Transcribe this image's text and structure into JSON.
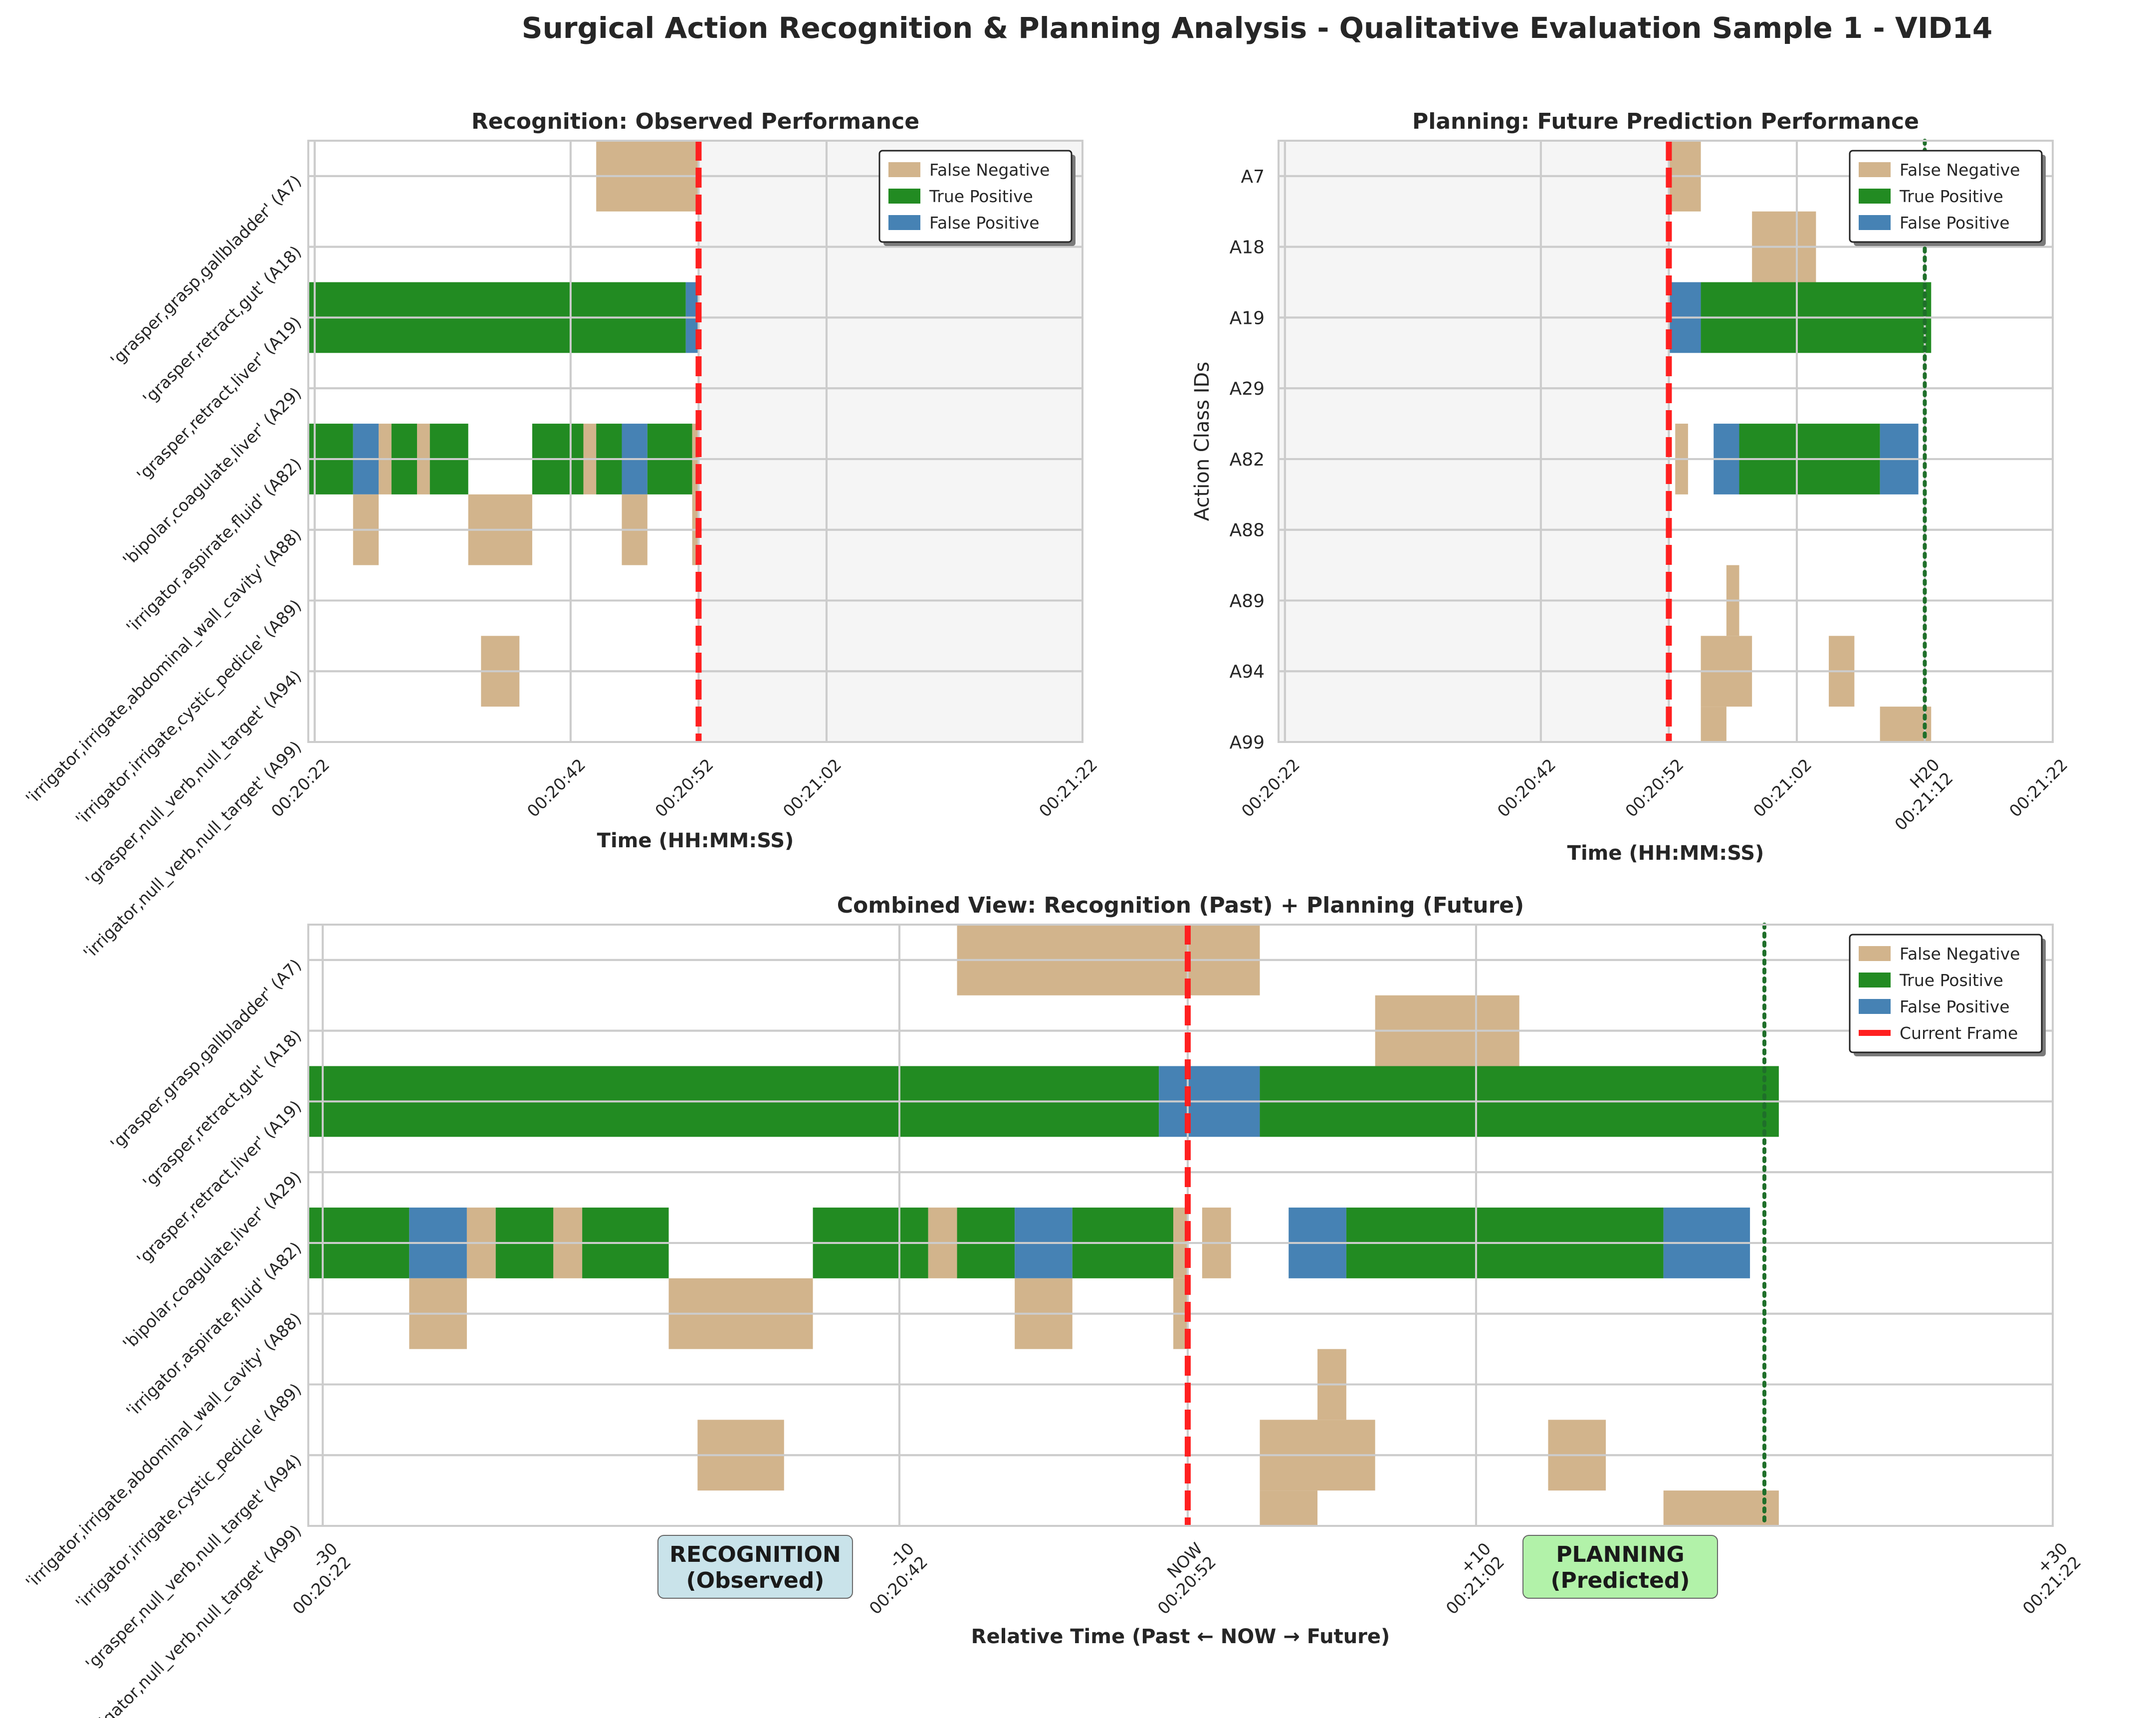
{
  "figure": {
    "suptitle": "Surgical Action Recognition & Planning Analysis - Qualitative Evaluation Sample 1 - VID14",
    "colors": {
      "false_negative": "#D2B48C",
      "true_positive": "#228B22",
      "false_positive": "#4682B4",
      "current_frame": "#FF2020",
      "horizon": "#1F6F2A",
      "future_shade": "#F5F5F5",
      "grid": "#CCCCCC",
      "recognition_box": "#C9E3EA",
      "planning_box": "#B2F2A9"
    }
  },
  "legend": {
    "false_negative": "False Negative",
    "true_positive": "True Positive",
    "false_positive": "False Positive",
    "current_frame": "Current Frame"
  },
  "class_labels_full": [
    "'grasper,grasp,gallbladder' (A7)",
    "'grasper,retract,gut' (A18)",
    "'grasper,retract,liver' (A19)",
    "'bipolar,coagulate,liver' (A29)",
    "'irrigator,aspirate,fluid' (A82)",
    "'irrigator,irrigate,abdominal_wall_cavity' (A88)",
    "'irrigator,irrigate,cystic_pedicle' (A89)",
    "'grasper,null_verb,null_target' (A94)",
    "'irrigator,null_verb,null_target' (A99)"
  ],
  "class_ids": [
    "A7",
    "A18",
    "A19",
    "A29",
    "A82",
    "A88",
    "A89",
    "A94",
    "A99"
  ],
  "panels": {
    "recognition": {
      "title": "Recognition: Observed Performance",
      "xlabel": "Time (HH:MM:SS)",
      "ylabel": "",
      "ticks": [
        {
          "t": -30,
          "label": "00:20:22"
        },
        {
          "t": -10,
          "label": "00:20:42"
        },
        {
          "t": 0,
          "label": "00:20:52"
        },
        {
          "t": 10,
          "label": "00:21:02"
        },
        {
          "t": 30,
          "label": "00:21:22"
        }
      ]
    },
    "planning": {
      "title": "Planning: Future Prediction Performance",
      "xlabel": "Time (HH:MM:SS)",
      "ylabel": "Action Class IDs",
      "ticks": [
        {
          "t": -30,
          "label": "00:20:22"
        },
        {
          "t": -10,
          "label": "00:20:42"
        },
        {
          "t": 0,
          "label": "00:20:52"
        },
        {
          "t": 10,
          "label": "00:21:02"
        },
        {
          "t": 20,
          "label": "H20\n00:21:12"
        },
        {
          "t": 30,
          "label": "00:21:22"
        }
      ]
    },
    "combined": {
      "title": "Combined View: Recognition (Past) + Planning (Future)",
      "xlabel": "Relative Time (Past ← NOW → Future)",
      "ylabel": "",
      "ticks": [
        {
          "t": -30,
          "label": "-30\n00:20:22"
        },
        {
          "t": -10,
          "label": "-10\n00:20:42"
        },
        {
          "t": 0,
          "label": "NOW\n00:20:52"
        },
        {
          "t": 10,
          "label": "+10\n00:21:02"
        },
        {
          "t": 30,
          "label": "+30\n00:21:22"
        }
      ],
      "recognition_label": "RECOGNITION\n(Observed)",
      "planning_label": "PLANNING\n(Predicted)"
    }
  },
  "chart_data": {
    "type": "timeline",
    "unit": "seconds relative to current frame (00:20:52)",
    "xlim": [
      -30.5,
      30
    ],
    "now": 0,
    "planning_horizon": 20,
    "row_height_fraction": 1.0,
    "recognition_segments": [
      {
        "class": "A7",
        "status": "FN",
        "start": -8,
        "end": 0
      },
      {
        "class": "A19",
        "status": "TP",
        "start": -31,
        "end": -1
      },
      {
        "class": "A19",
        "status": "FP",
        "start": -1,
        "end": 0
      },
      {
        "class": "A82",
        "status": "TP",
        "start": -31,
        "end": -27
      },
      {
        "class": "A82",
        "status": "FP",
        "start": -27,
        "end": -25
      },
      {
        "class": "A82",
        "status": "FN",
        "start": -25,
        "end": -24
      },
      {
        "class": "A82",
        "status": "TP",
        "start": -24,
        "end": -22
      },
      {
        "class": "A82",
        "status": "FN",
        "start": -22,
        "end": -21
      },
      {
        "class": "A82",
        "status": "TP",
        "start": -21,
        "end": -18
      },
      {
        "class": "A82",
        "status": "TP",
        "start": -13,
        "end": -9
      },
      {
        "class": "A82",
        "status": "FN",
        "start": -9,
        "end": -8
      },
      {
        "class": "A82",
        "status": "TP",
        "start": -8,
        "end": -6
      },
      {
        "class": "A82",
        "status": "FP",
        "start": -6,
        "end": -4
      },
      {
        "class": "A82",
        "status": "TP",
        "start": -4,
        "end": -0.5
      },
      {
        "class": "A82",
        "status": "FN",
        "start": -0.5,
        "end": 0
      },
      {
        "class": "A88",
        "status": "FN",
        "start": -27,
        "end": -25
      },
      {
        "class": "A88",
        "status": "FN",
        "start": -18,
        "end": -13
      },
      {
        "class": "A88",
        "status": "FN",
        "start": -6,
        "end": -4
      },
      {
        "class": "A88",
        "status": "FN",
        "start": -0.5,
        "end": 0
      },
      {
        "class": "A94",
        "status": "FN",
        "start": -17,
        "end": -14
      }
    ],
    "planning_segments": [
      {
        "class": "A7",
        "status": "FN",
        "start": 0,
        "end": 2.5
      },
      {
        "class": "A18",
        "status": "FN",
        "start": 6.5,
        "end": 11.5
      },
      {
        "class": "A19",
        "status": "FP",
        "start": 0,
        "end": 2.5
      },
      {
        "class": "A19",
        "status": "TP",
        "start": 2.5,
        "end": 20.5
      },
      {
        "class": "A82",
        "status": "FN",
        "start": 0.5,
        "end": 1.5
      },
      {
        "class": "A82",
        "status": "FP",
        "start": 3.5,
        "end": 5.5
      },
      {
        "class": "A82",
        "status": "TP",
        "start": 5.5,
        "end": 16.5
      },
      {
        "class": "A82",
        "status": "FP",
        "start": 16.5,
        "end": 19.5
      },
      {
        "class": "A89",
        "status": "FN",
        "start": 4.5,
        "end": 5.5
      },
      {
        "class": "A94",
        "status": "FN",
        "start": 2.5,
        "end": 6.5
      },
      {
        "class": "A94",
        "status": "FN",
        "start": 12.5,
        "end": 14.5
      },
      {
        "class": "A99",
        "status": "FN",
        "start": 2.5,
        "end": 4.5
      },
      {
        "class": "A99",
        "status": "FN",
        "start": 16.5,
        "end": 20.5
      }
    ]
  }
}
